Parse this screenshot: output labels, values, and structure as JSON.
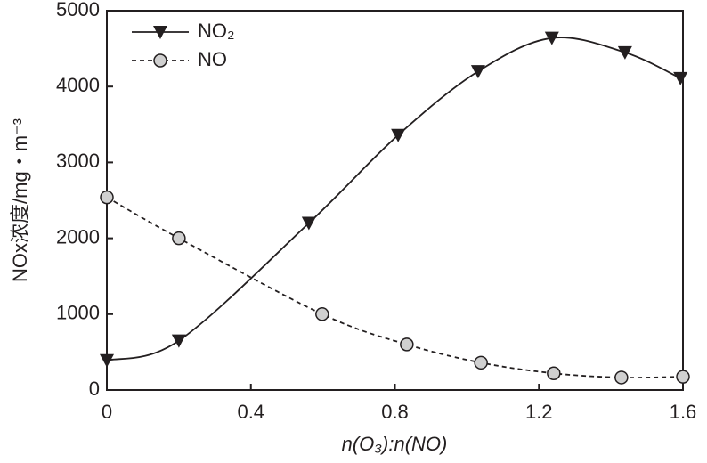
{
  "chart_data": {
    "type": "line",
    "xlabel": "n(O₃):n(NO)",
    "ylabel": "NOx浓度/mg・m⁻³",
    "xlim": [
      0,
      1.6
    ],
    "xticks": [
      0,
      0.4,
      0.8,
      1.2,
      1.6
    ],
    "ylim": [
      0,
      5000
    ],
    "yticks": [
      0,
      1000,
      2000,
      3000,
      4000,
      5000
    ],
    "grid": false,
    "legend": "upper left",
    "series": [
      {
        "name": "NO₂",
        "color": "#231f20",
        "marker": "triangle-down",
        "dash": "solid",
        "x": [
          0,
          0.2,
          0.561,
          0.809,
          1.031,
          1.236,
          1.439,
          1.593
        ],
        "values": [
          390,
          650,
          2200,
          3360,
          4200,
          4640,
          4450,
          4110
        ]
      },
      {
        "name": "NO",
        "color": "#231f20",
        "marker": "circle",
        "dash": "dashed",
        "x": [
          0,
          0.2,
          0.598,
          0.833,
          1.039,
          1.241,
          1.429,
          1.6
        ],
        "values": [
          2540,
          2000,
          1000,
          600,
          360,
          220,
          165,
          175
        ]
      }
    ]
  }
}
